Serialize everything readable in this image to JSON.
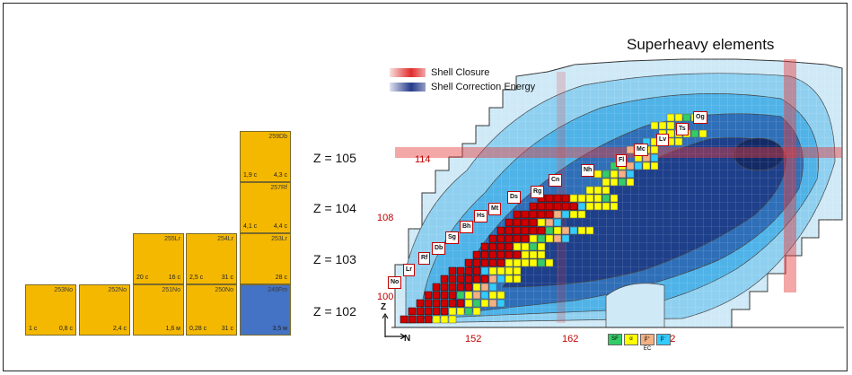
{
  "nuclides": [
    {
      "iso": "259Db",
      "hl_left": "1,9 c",
      "hl_right": "4,3 c"
    },
    {
      "iso": "257Rf",
      "hl_left": "4,1 c",
      "hl_right": "4,4 c"
    },
    {
      "iso": "255Lr",
      "hl_left": "20 c",
      "hl_right": "16 c"
    },
    {
      "iso": "254Lr",
      "hl_left": "2,5 c",
      "hl_right": "31 c"
    },
    {
      "iso": "253Lr",
      "hl_left": "",
      "hl_right": "28 c"
    },
    {
      "iso": "253No",
      "hl_left": "1 c",
      "hl_right": "0,8 c"
    },
    {
      "iso": "252No",
      "hl_left": "",
      "hl_right": "2,4 c"
    },
    {
      "iso": "251No",
      "hl_left": "",
      "hl_right": "1,6 м"
    },
    {
      "iso": "250No",
      "hl_left": "0,28 c",
      "hl_right": "31 c"
    },
    {
      "iso": "249Fm",
      "hl_left": "",
      "hl_right": "3,5 м"
    }
  ],
  "z_labels": [
    "Z = 105",
    "Z = 104",
    "Z = 103",
    "Z = 102"
  ],
  "map": {
    "title": "Superheavy elements",
    "legend": [
      "Shell Closure",
      "Shell Correction Energy"
    ],
    "z_ticks": [
      "114",
      "108",
      "100"
    ],
    "n_ticks": [
      "152",
      "162",
      "172"
    ],
    "axis_z": "Z",
    "axis_n": "N",
    "elements": [
      "No",
      "Lr",
      "Rf",
      "Db",
      "Sg",
      "Bh",
      "Hs",
      "Mt",
      "Ds",
      "Rg",
      "Cn",
      "Nh",
      "Fl",
      "Mc",
      "Lv",
      "Ts",
      "Og"
    ],
    "decay_legend": [
      "SF",
      "α",
      "β⁺ EC",
      "β⁻"
    ],
    "colors": {
      "alpha": "#ffff00",
      "sf": "#33cc66",
      "ec": "#f4b183",
      "beta": "#33ccff",
      "known": "#d00000"
    }
  }
}
